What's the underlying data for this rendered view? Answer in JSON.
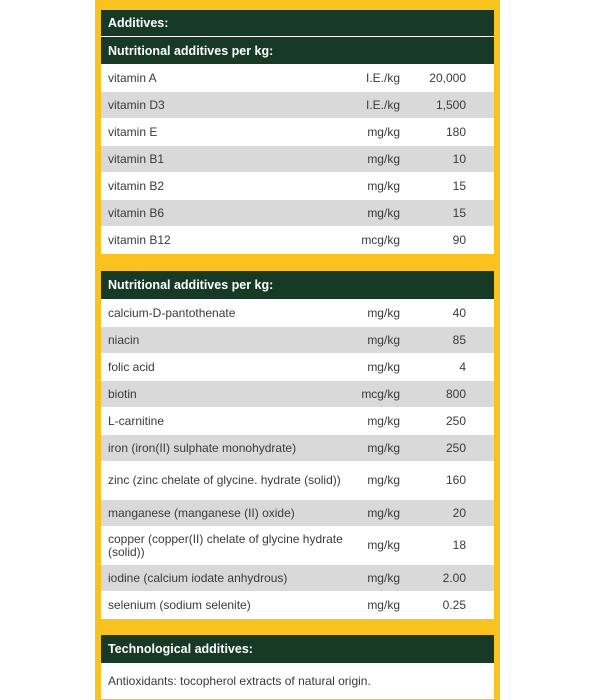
{
  "additives_title": "Additives:",
  "sections": [
    {
      "title": "Nutritional additives per kg:",
      "rows": [
        {
          "name": "vitamin A",
          "unit": "I.E./kg",
          "value": "20,000"
        },
        {
          "name": "vitamin D3",
          "unit": "I.E./kg",
          "value": "1,500"
        },
        {
          "name": "vitamin E",
          "unit": "mg/kg",
          "value": "180"
        },
        {
          "name": "vitamin B1",
          "unit": "mg/kg",
          "value": "10"
        },
        {
          "name": "vitamin B2",
          "unit": "mg/kg",
          "value": "15"
        },
        {
          "name": "vitamin B6",
          "unit": "mg/kg",
          "value": "15"
        },
        {
          "name": "vitamin B12",
          "unit": "mcg/kg",
          "value": "90"
        }
      ]
    },
    {
      "title": "Nutritional additives per kg:",
      "rows": [
        {
          "name": "calcium-D-pantothenate",
          "unit": "mg/kg",
          "value": "40"
        },
        {
          "name": "niacin",
          "unit": "mg/kg",
          "value": "85"
        },
        {
          "name": "folic acid",
          "unit": "mg/kg",
          "value": "4"
        },
        {
          "name": "biotin",
          "unit": "mcg/kg",
          "value": "800"
        },
        {
          "name": "L-carnitine",
          "unit": "mg/kg",
          "value": "250"
        },
        {
          "name": "iron (iron(II) sulphate monohydrate)",
          "unit": "mg/kg",
          "value": "250"
        },
        {
          "name": "zinc (zinc chelate of glycine. hydrate (solid))",
          "unit": "mg/kg",
          "value": "160"
        },
        {
          "name": "manganese (manganese (II) oxide)",
          "unit": "mg/kg",
          "value": "20"
        },
        {
          "name": "copper (copper(II) chelate of glycine hydrate (solid))",
          "unit": "mg/kg",
          "value": "18"
        },
        {
          "name": "iodine (calcium iodate anhydrous)",
          "unit": "mg/kg",
          "value": "2.00"
        },
        {
          "name": "selenium (sodium selenite)",
          "unit": "mg/kg",
          "value": "0.25"
        }
      ]
    }
  ],
  "technological": {
    "title": "Technological additives:",
    "text": "Antioxidants: tocopherol extracts of natural origin."
  }
}
